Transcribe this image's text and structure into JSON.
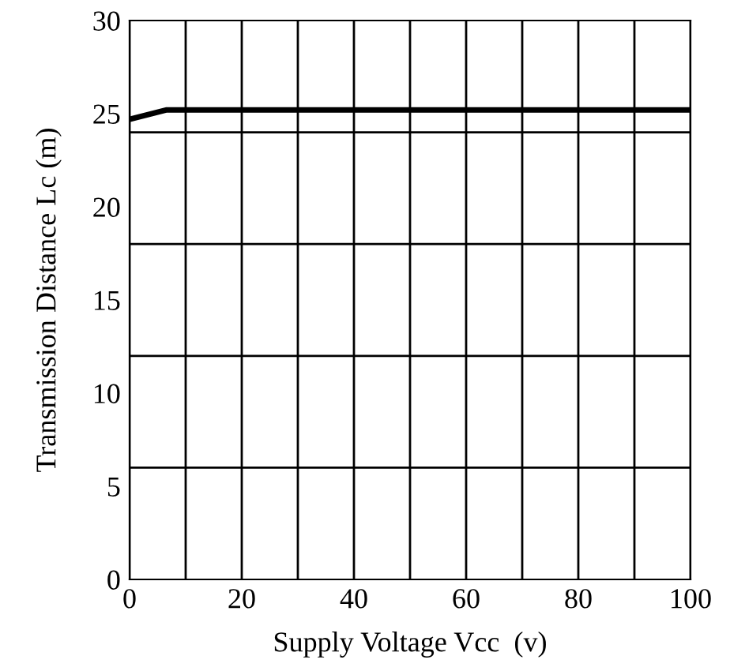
{
  "chart_data": {
    "type": "line",
    "xlabel": "Supply Voltage Vcc  (v)",
    "ylabel": "Transmission Distance Lc (m)",
    "x": [
      0,
      6.5,
      100
    ],
    "series": [
      {
        "color": "#000000",
        "values": [
          24.7,
          25.2,
          25.2
        ]
      }
    ],
    "xlim": [
      0,
      100
    ],
    "ylim": [
      0,
      30
    ],
    "xticks": [
      0,
      {
        "value": 10,
        "label": null
      },
      20,
      {
        "value": 30,
        "label": null
      },
      40,
      {
        "value": 50,
        "label": null
      },
      60,
      {
        "value": 70,
        "label": null
      },
      80,
      {
        "value": 90,
        "label": null
      },
      100
    ],
    "yticks": [
      0,
      5,
      10,
      15,
      20,
      25,
      30
    ],
    "grid": "x",
    "ref_lines": [
      {
        "axis": "y",
        "value": 6,
        "color": "#000000"
      },
      {
        "axis": "y",
        "value": 12,
        "color": "#000000"
      },
      {
        "axis": "y",
        "value": 18,
        "color": "#000000"
      },
      {
        "axis": "y",
        "value": 24,
        "color": "#000000"
      }
    ],
    "line_style": "solid",
    "marker": "none"
  }
}
